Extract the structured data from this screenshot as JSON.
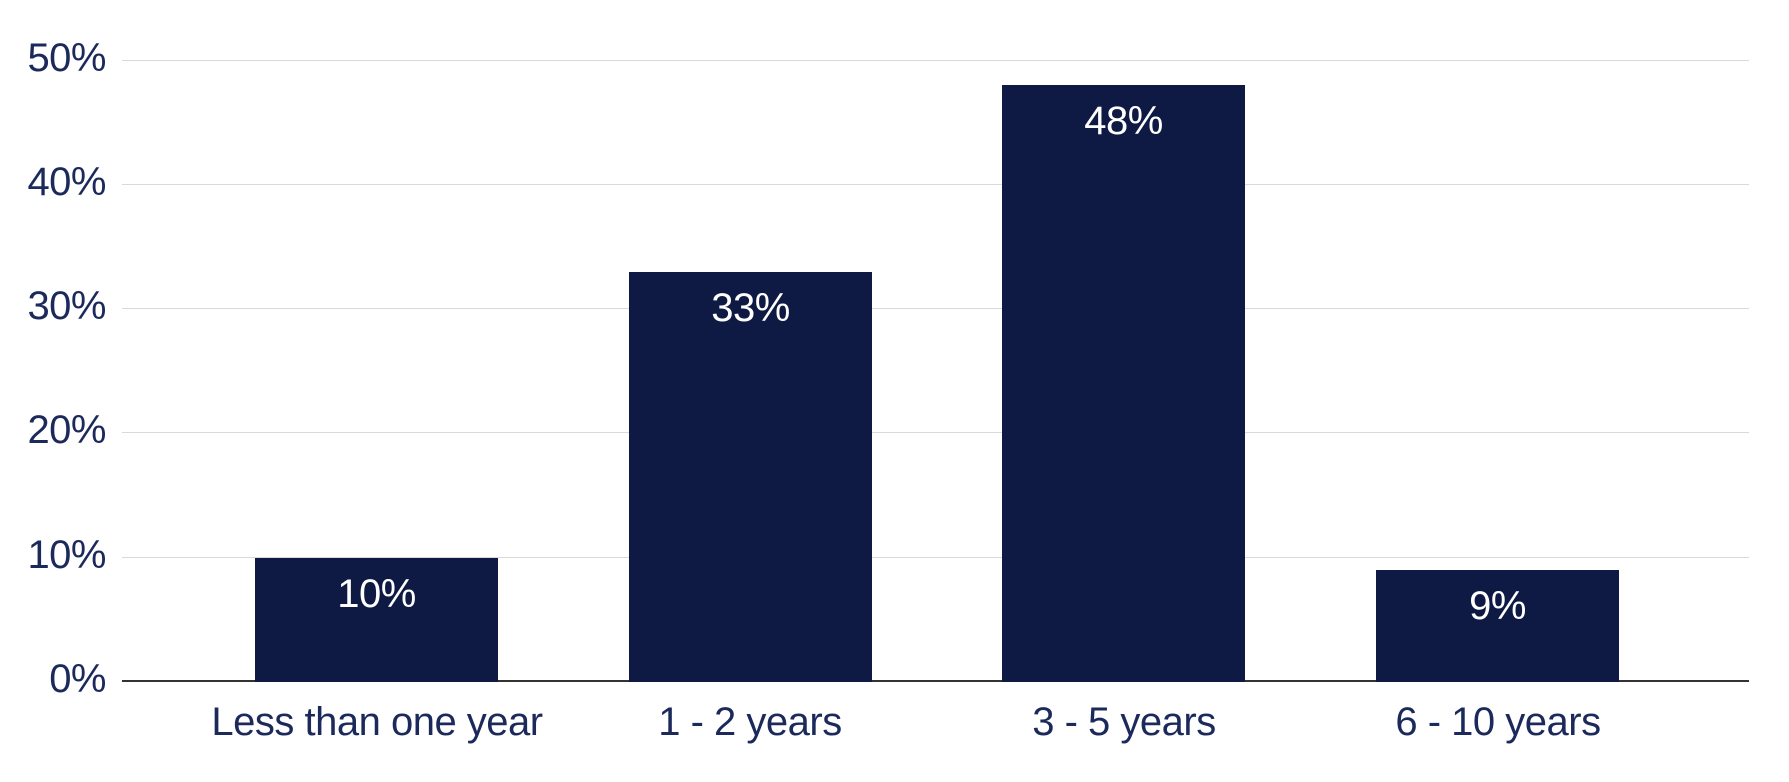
{
  "chart_data": {
    "type": "bar",
    "categories": [
      "Less than one year",
      "1 - 2 years",
      "3 - 5 years",
      "6 - 10 years"
    ],
    "values": [
      10,
      33,
      48,
      9
    ],
    "data_labels": [
      "10%",
      "33%",
      "48%",
      "9%"
    ],
    "y_ticks": [
      {
        "value": 0,
        "label": "0%"
      },
      {
        "value": 10,
        "label": "10%"
      },
      {
        "value": 20,
        "label": "20%"
      },
      {
        "value": 30,
        "label": "30%"
      },
      {
        "value": 40,
        "label": "40%"
      },
      {
        "value": 50,
        "label": "50%"
      }
    ],
    "ylim": [
      0,
      50
    ],
    "grid": true,
    "legend": "none"
  },
  "colors": {
    "bar_fill": "#0e1a44",
    "axis_text": "#1b2a5b",
    "data_label_text": "#ffffff",
    "gridline": "#d9d9d9",
    "axis_line": "#333333",
    "background": "#ffffff"
  }
}
